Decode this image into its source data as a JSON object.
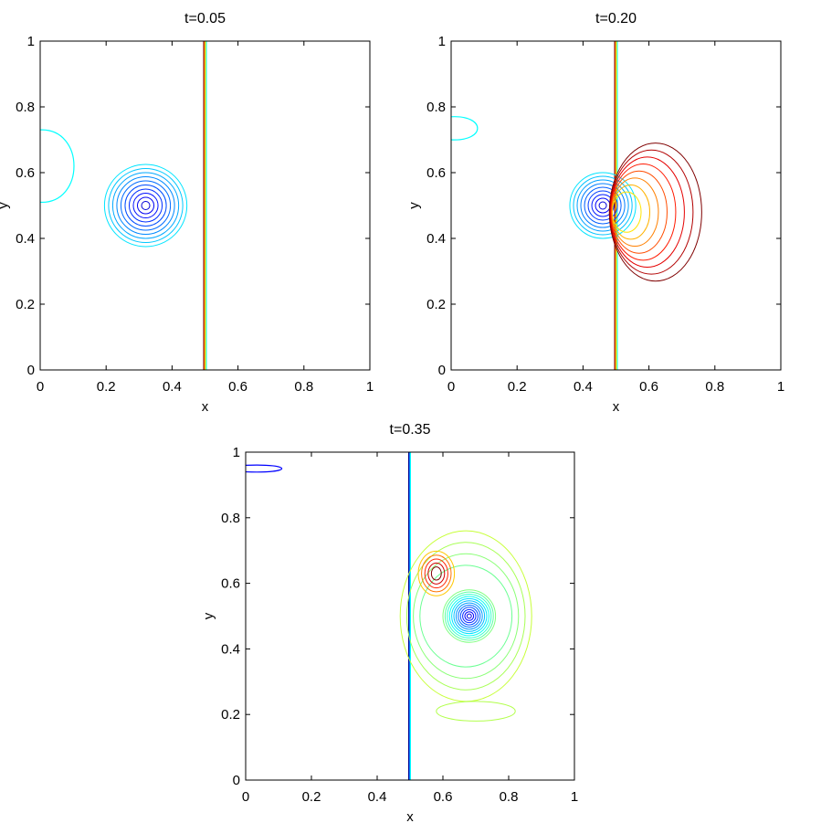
{
  "chart_data": [
    {
      "type": "contour",
      "title": "t=0.05",
      "xlabel": "x",
      "ylabel": "y",
      "xlim": [
        0,
        1
      ],
      "ylim": [
        0,
        1
      ],
      "xticks": [
        0,
        0.2,
        0.4,
        0.6,
        0.8,
        1
      ],
      "yticks": [
        0,
        0.2,
        0.4,
        0.6,
        0.8,
        1
      ],
      "xtick_labels": [
        "0",
        "0.2",
        "0.4",
        "0.6",
        "0.8",
        "1"
      ],
      "ytick_labels": [
        "0",
        "0.2",
        "0.4",
        "0.6",
        "0.8",
        "1"
      ],
      "grid": false,
      "features": {
        "shock_x": 0.5,
        "vortex": {
          "center": [
            0.32,
            0.5
          ],
          "outer_radius": 0.25,
          "levels": 10
        },
        "edge_blob": {
          "x_max": 0.12,
          "y_range": [
            0.51,
            0.73
          ]
        },
        "wake": "none"
      }
    },
    {
      "type": "contour",
      "title": "t=0.20",
      "xlabel": "x",
      "ylabel": "y",
      "xlim": [
        0,
        1
      ],
      "ylim": [
        0,
        1
      ],
      "xticks": [
        0,
        0.2,
        0.4,
        0.6,
        0.8,
        1
      ],
      "yticks": [
        0,
        0.2,
        0.4,
        0.6,
        0.8,
        1
      ],
      "xtick_labels": [
        "0",
        "0.2",
        "0.4",
        "0.6",
        "0.8",
        "1"
      ],
      "ytick_labels": [
        "0",
        "0.2",
        "0.4",
        "0.6",
        "0.8",
        "1"
      ],
      "grid": false,
      "features": {
        "shock_x": 0.5,
        "vortex": {
          "center": [
            0.46,
            0.5
          ],
          "outer_radius": 0.2,
          "levels": 9
        },
        "edge_blob": {
          "x_max": 0.09,
          "y_range": [
            0.7,
            0.77
          ]
        },
        "wake": "red contours, x 0.5 to 0.76, y 0.27 to 0.69"
      }
    },
    {
      "type": "contour",
      "title": "t=0.35",
      "xlabel": "x",
      "ylabel": "y",
      "xlim": [
        0,
        1
      ],
      "ylim": [
        0,
        1
      ],
      "xticks": [
        0,
        0.2,
        0.4,
        0.6,
        0.8,
        1
      ],
      "yticks": [
        0,
        0.2,
        0.4,
        0.6,
        0.8,
        1
      ],
      "xtick_labels": [
        "0",
        "0.2",
        "0.4",
        "0.6",
        "0.8",
        "1"
      ],
      "ytick_labels": [
        "0",
        "0.2",
        "0.4",
        "0.6",
        "0.8",
        "1"
      ],
      "grid": false,
      "features": {
        "shock_x": 0.5,
        "vortex": {
          "center": [
            0.68,
            0.5
          ],
          "outer_radius": 0.16,
          "levels": 12
        },
        "edge_blob": {
          "x_max": 0.13,
          "y_range": [
            0.94,
            0.96
          ]
        },
        "wake": "green contours, x 0.45 to 0.9, y 0.15 to 0.8"
      }
    }
  ],
  "colors": {
    "scale": [
      "#00008f",
      "#0000ff",
      "#007fff",
      "#00ffff",
      "#7fff7f",
      "#ffff00",
      "#ff7f00",
      "#ff0000",
      "#7f0000"
    ],
    "axis": "#000000",
    "background": "#ffffff"
  }
}
